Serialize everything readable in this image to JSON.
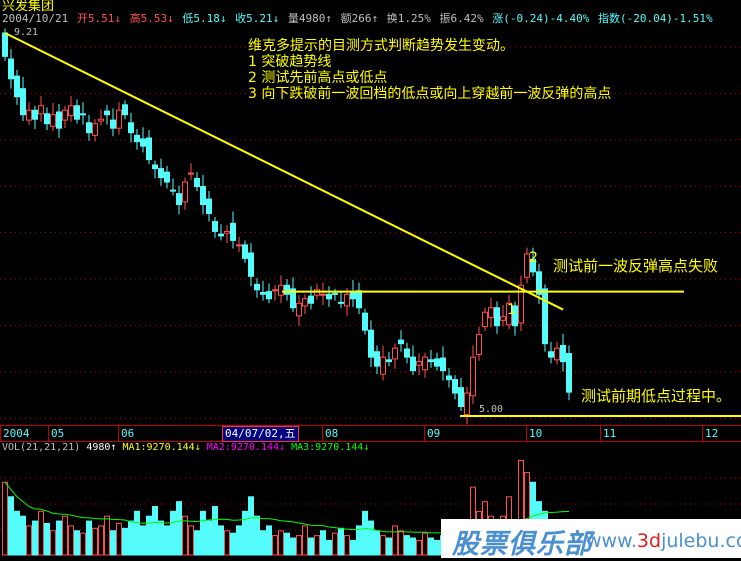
{
  "stock_name": "兴发集团",
  "quote": {
    "date": "2004/10/21",
    "open": "开5.51↓",
    "high": "高5.53↓",
    "low": "低5.18↓",
    "close": "收5.21↓",
    "volume": "量4980↑",
    "amount": "额266↑",
    "turnover": "换1.25%",
    "amplitude": "振6.42%",
    "change": "涨(-0.24)-4.40%",
    "index": "指数(-20.04)-1.51%"
  },
  "price_labels": {
    "max": "9.21",
    "min": "5.00"
  },
  "annotations": {
    "heading": "维克多提示的目测方式判断趋势发生变动。",
    "rule1": "1 突破趋势线",
    "rule2": "2 测试先前高点或低点",
    "rule3": "3 向下跌破前一波回档的低点或向上穿越前一波反弹的高点",
    "mark1": "1",
    "mark2": "2",
    "note_high": "测试前一波反弹高点失败",
    "note_low": "测试前期低点过程中。"
  },
  "time_axis": {
    "labels": [
      "2004",
      "05",
      "06",
      "08",
      "09",
      "10",
      "11",
      "12"
    ],
    "cursor": "04/07/02,五"
  },
  "volume_indicator": {
    "name": "VOL(21,21,21)",
    "value": "4980↑",
    "ma1": "MA1:9270.144↓",
    "ma2": "MA2:9270.144↓",
    "ma3": "MA3:9270.144↓"
  },
  "colors": {
    "up": "#ff5050",
    "down": "#54fcfc",
    "trendline": "#ffff00",
    "grid": "#c00000",
    "ma": "#00ff00"
  },
  "chart_data": {
    "type": "candlestick",
    "price_range": [
      5.0,
      9.21
    ],
    "close": [
      8.95,
      8.7,
      8.5,
      8.3,
      8.35,
      8.25,
      8.4,
      8.2,
      8.3,
      8.15,
      8.35,
      8.4,
      8.25,
      8.3,
      8.1,
      8.2,
      8.25,
      8.3,
      8.15,
      8.35,
      8.3,
      8.1,
      8.0,
      7.95,
      7.8,
      7.7,
      7.6,
      7.55,
      7.45,
      7.3,
      7.55,
      7.65,
      7.5,
      7.3,
      7.2,
      7.0,
      6.95,
      7.0,
      6.9,
      6.85,
      6.7,
      6.5,
      6.35,
      6.3,
      6.25,
      6.35,
      6.4,
      6.3,
      6.15,
      6.2,
      6.25,
      6.2,
      6.35,
      6.3,
      6.25,
      6.3,
      6.2,
      6.3,
      6.25,
      6.15,
      5.9,
      5.6,
      5.5,
      5.6,
      5.55,
      5.7,
      5.75,
      5.6,
      5.45,
      5.55,
      5.6,
      5.55,
      5.5,
      5.45,
      5.35,
      5.2,
      5.05,
      5.2,
      5.6,
      5.85,
      6.1,
      6.15,
      5.95,
      6.05,
      6.2,
      5.95,
      6.4,
      6.75,
      6.55,
      6.3,
      5.75,
      5.6,
      5.7,
      5.55,
      5.21
    ],
    "volume": [
      15000,
      12000,
      9000,
      8000,
      6000,
      7000,
      9000,
      6500,
      5000,
      7000,
      8000,
      6000,
      5000,
      4500,
      7000,
      5500,
      6000,
      8000,
      5000,
      6500,
      5500,
      7000,
      9000,
      6000,
      8000,
      10000,
      7000,
      6000,
      9000,
      11000,
      8000,
      6000,
      5000,
      9000,
      7000,
      10000,
      6000,
      5000,
      4500,
      6000,
      9000,
      12000,
      8000,
      5000,
      6000,
      4000,
      5000,
      4500,
      3500,
      4000,
      6000,
      3500,
      4000,
      5000,
      3000,
      4500,
      5500,
      4000,
      3000,
      6000,
      9000,
      7000,
      5000,
      4000,
      3500,
      6000,
      5000,
      4000,
      3500,
      3000,
      4500,
      3500,
      3000,
      4000,
      5000,
      6500,
      4000,
      5500,
      14000,
      9000,
      11000,
      8000,
      6000,
      8000,
      12000,
      7000,
      19500,
      17000,
      15000,
      11000,
      9000,
      6000,
      5000,
      5500,
      4980
    ],
    "ma_volume": 9270.144,
    "trendlines": [
      {
        "from_index": 0,
        "to_index": 93,
        "from_price": 9.21,
        "to_price": 6.13
      },
      {
        "level": 6.33
      },
      {
        "level": 5.0
      }
    ]
  }
}
